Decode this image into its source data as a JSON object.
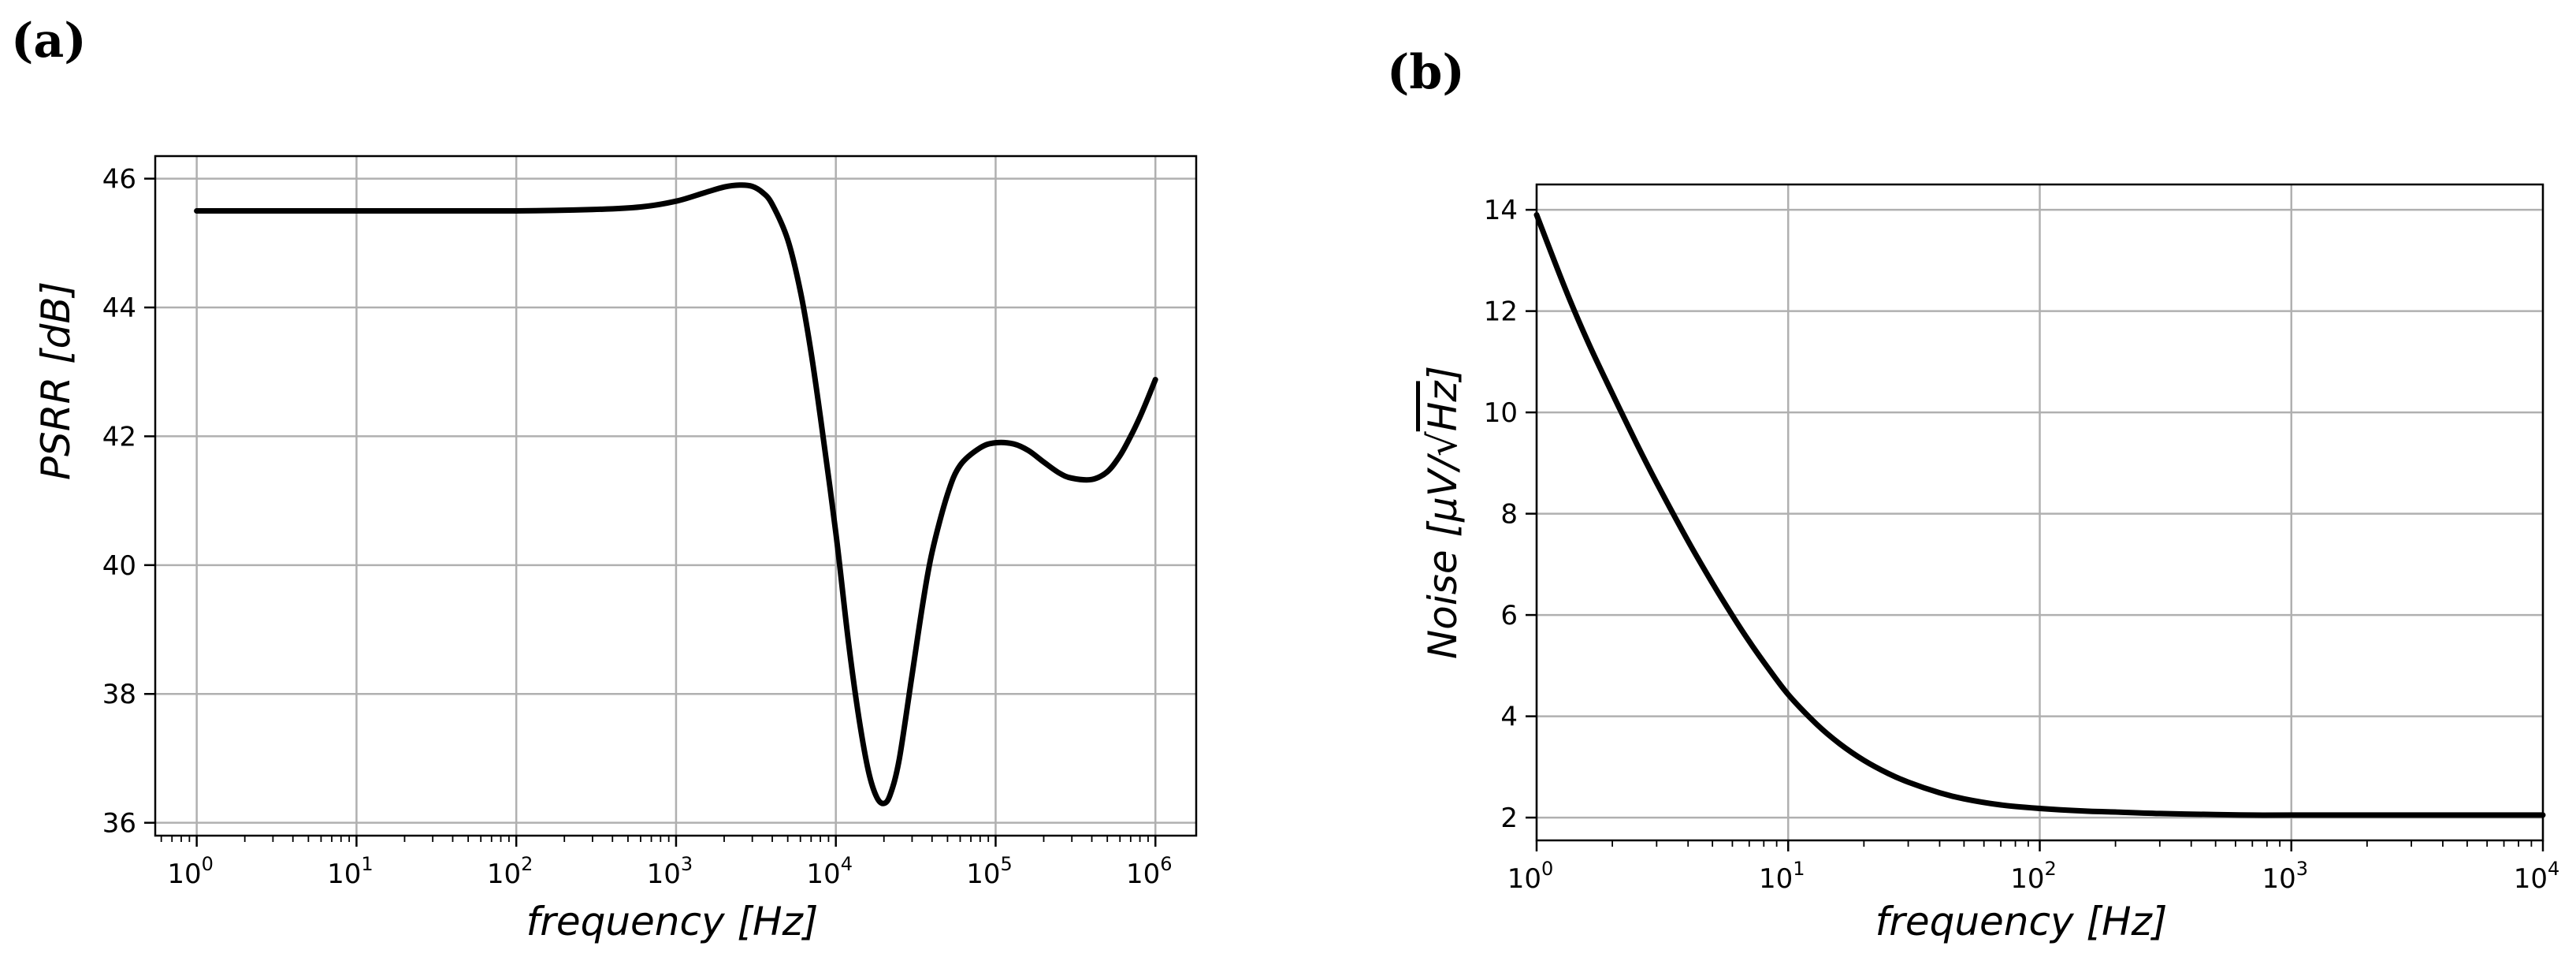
{
  "chart_data": [
    {
      "panel": "(a)",
      "type": "line",
      "xscale": "log",
      "xlabel": "frequency [Hz]",
      "ylabel": "PSRR [dB]",
      "xlim": [
        0.55,
        1800000
      ],
      "ylim": [
        35.8,
        46.35
      ],
      "x_ticks": [
        {
          "base": "10",
          "exp": "0"
        },
        {
          "base": "10",
          "exp": "1"
        },
        {
          "base": "10",
          "exp": "2"
        },
        {
          "base": "10",
          "exp": "3"
        },
        {
          "base": "10",
          "exp": "4"
        },
        {
          "base": "10",
          "exp": "5"
        },
        {
          "base": "10",
          "exp": "6"
        }
      ],
      "y_ticks": [
        "36",
        "38",
        "40",
        "42",
        "44",
        "46"
      ],
      "grid": true,
      "series": [
        {
          "name": "PSRR",
          "color": "#000000",
          "x": [
            1,
            10,
            100,
            300,
            600,
            1000,
            1500,
            2000,
            2500,
            3000,
            3500,
            4000,
            5000,
            6000,
            7000,
            8000,
            10000,
            12000,
            14000,
            16000,
            18000,
            20000,
            22000,
            25000,
            30000,
            35000,
            40000,
            50000,
            60000,
            80000,
            100000,
            130000,
            160000,
            200000,
            250000,
            300000,
            400000,
            500000,
            600000,
            700000,
            800000,
            900000,
            1000000
          ],
          "y": [
            45.5,
            45.5,
            45.5,
            45.52,
            45.56,
            45.65,
            45.78,
            45.87,
            45.9,
            45.88,
            45.78,
            45.6,
            45.05,
            44.25,
            43.3,
            42.3,
            40.5,
            38.8,
            37.6,
            36.8,
            36.4,
            36.3,
            36.45,
            37.0,
            38.3,
            39.4,
            40.2,
            41.1,
            41.55,
            41.82,
            41.9,
            41.88,
            41.78,
            41.6,
            41.43,
            41.35,
            41.33,
            41.45,
            41.7,
            42.0,
            42.3,
            42.6,
            42.88
          ]
        }
      ]
    },
    {
      "panel": "(b)",
      "type": "line",
      "xscale": "log",
      "xlabel": "frequency [Hz]",
      "ylabel": "Noise [μV/√Hz]",
      "xlim": [
        1,
        10000
      ],
      "ylim": [
        1.55,
        14.5
      ],
      "x_ticks": [
        {
          "base": "10",
          "exp": "0"
        },
        {
          "base": "10",
          "exp": "1"
        },
        {
          "base": "10",
          "exp": "2"
        },
        {
          "base": "10",
          "exp": "3"
        },
        {
          "base": "10",
          "exp": "4"
        }
      ],
      "y_ticks": [
        "2",
        "4",
        "6",
        "8",
        "10",
        "12",
        "14"
      ],
      "grid": true,
      "series": [
        {
          "name": "Noise",
          "color": "#000000",
          "x": [
            1,
            1.3,
            1.6,
            2,
            2.5,
            3,
            4,
            5,
            6,
            7,
            8,
            10,
            13,
            16,
            20,
            25,
            30,
            40,
            50,
            70,
            100,
            150,
            200,
            300,
            500,
            700,
            1000,
            2000,
            5000,
            10000
          ],
          "y": [
            13.9,
            12.44,
            11.39,
            10.37,
            9.38,
            8.61,
            7.46,
            6.63,
            5.99,
            5.48,
            5.07,
            4.43,
            3.84,
            3.46,
            3.13,
            2.87,
            2.7,
            2.49,
            2.37,
            2.25,
            2.18,
            2.13,
            2.11,
            2.08,
            2.06,
            2.05,
            2.05,
            2.05,
            2.05,
            2.05
          ]
        }
      ]
    }
  ],
  "panels": {
    "a": {
      "label": "(a)",
      "ylabel_main": "PSRR",
      "ylabel_unit": "[dB]",
      "xlabel_main": "frequency",
      "xlabel_unit": "[Hz]"
    },
    "b": {
      "label": "(b)",
      "ylabel_main": "Noise",
      "ylabel_unit_prefix": "[μV/",
      "ylabel_unit_root": "Hz",
      "ylabel_unit_suffix": "]",
      "xlabel_main": "frequency",
      "xlabel_unit": "[Hz]"
    }
  }
}
